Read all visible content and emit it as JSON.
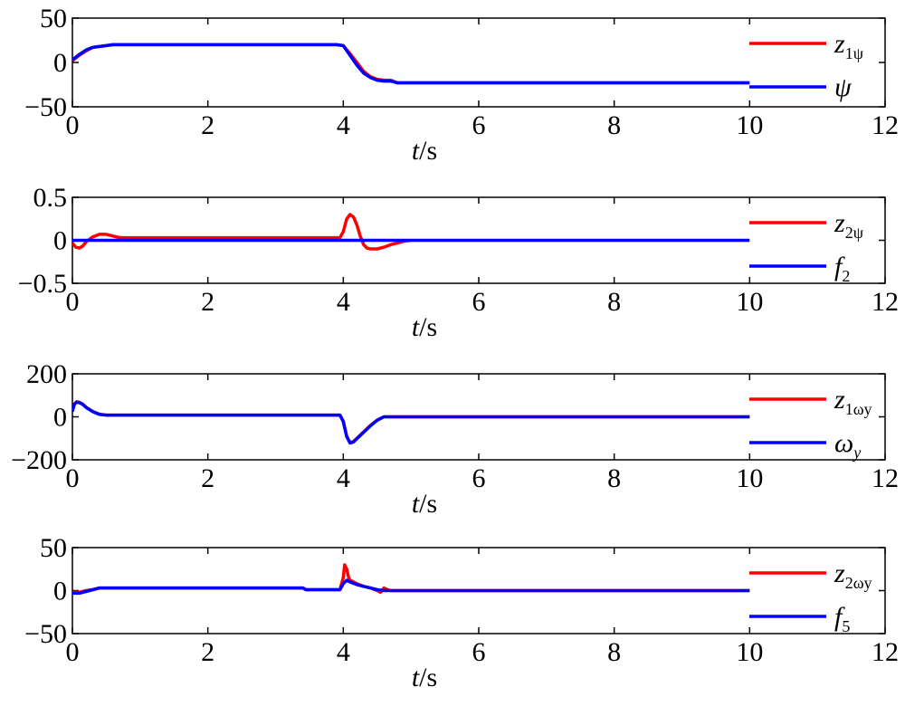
{
  "chart_data": [
    {
      "type": "line",
      "xlim": [
        0,
        12
      ],
      "ylim": [
        -50,
        50
      ],
      "xticks": [
        "0",
        "2",
        "4",
        "6",
        "8",
        "10",
        "12"
      ],
      "yticks": [
        "50",
        "0",
        "−50"
      ],
      "ytick_values": [
        50,
        0,
        -50
      ],
      "xlabel_var": "t",
      "xlabel_unit": "/s",
      "series": [
        {
          "name": "z",
          "sub": "1ψ",
          "color": "#ff0000",
          "x": [
            0,
            0.1,
            0.2,
            0.3,
            0.4,
            0.5,
            0.6,
            2,
            3.9,
            4.0,
            4.1,
            4.2,
            4.3,
            4.4,
            4.5,
            4.6,
            4.7,
            4.8,
            10
          ],
          "y": [
            2,
            8,
            13,
            17,
            18,
            19,
            20,
            20,
            20,
            19,
            10,
            0,
            -10,
            -16,
            -19,
            -20,
            -20,
            -23,
            -23
          ]
        },
        {
          "name": "ψ",
          "sub": "",
          "color": "#0000ff",
          "x": [
            0,
            0.1,
            0.2,
            0.3,
            0.4,
            0.5,
            0.6,
            2,
            3.9,
            4.0,
            4.1,
            4.2,
            4.3,
            4.4,
            4.5,
            4.6,
            4.7,
            4.8,
            10
          ],
          "y": [
            3,
            9,
            14,
            17,
            18,
            19,
            20,
            20,
            20,
            19,
            8,
            -3,
            -12,
            -17,
            -20,
            -21,
            -21,
            -23,
            -23
          ]
        }
      ]
    },
    {
      "type": "line",
      "xlim": [
        0,
        12
      ],
      "ylim": [
        -0.5,
        0.5
      ],
      "xticks": [
        "0",
        "2",
        "4",
        "6",
        "8",
        "10",
        "12"
      ],
      "yticks": [
        "0.5",
        "0",
        "−0.5"
      ],
      "ytick_values": [
        0.5,
        0,
        -0.5
      ],
      "xlabel_var": "t",
      "xlabel_unit": "/s",
      "series": [
        {
          "name": "z",
          "sub": "2ψ",
          "color": "#ff0000",
          "x": [
            0,
            0.05,
            0.1,
            0.15,
            0.2,
            0.3,
            0.4,
            0.5,
            0.6,
            0.7,
            1,
            3.95,
            4.0,
            4.05,
            4.1,
            4.15,
            4.2,
            4.25,
            4.3,
            4.35,
            4.4,
            4.5,
            4.6,
            4.7,
            4.8,
            4.9,
            5.0
          ],
          "y": [
            -0.03,
            -0.08,
            -0.09,
            -0.07,
            -0.02,
            0.04,
            0.07,
            0.07,
            0.05,
            0.03,
            0.03,
            0.03,
            0.1,
            0.25,
            0.3,
            0.27,
            0.18,
            0.05,
            -0.05,
            -0.09,
            -0.1,
            -0.1,
            -0.08,
            -0.05,
            -0.03,
            -0.01,
            0
          ]
        },
        {
          "name": "f",
          "sub": "2",
          "color": "#0000ff",
          "x": [
            0,
            10
          ],
          "y": [
            0,
            0
          ]
        }
      ]
    },
    {
      "type": "line",
      "xlim": [
        0,
        12
      ],
      "ylim": [
        -200,
        200
      ],
      "xticks": [
        "0",
        "2",
        "4",
        "6",
        "8",
        "10",
        "12"
      ],
      "yticks": [
        "200",
        "0",
        "−200"
      ],
      "ytick_values": [
        200,
        0,
        -200
      ],
      "xlabel_var": "t",
      "xlabel_unit": "/s",
      "series": [
        {
          "name": "z",
          "sub": "1ωy",
          "color": "#ff0000",
          "x": [
            0,
            0.03,
            0.06,
            0.1,
            0.15,
            0.2,
            0.3,
            0.4,
            0.5,
            2,
            3.95,
            4.0,
            4.05,
            4.1,
            4.15,
            4.2,
            4.3,
            4.4,
            4.5,
            4.6,
            10
          ],
          "y": [
            30,
            60,
            70,
            68,
            60,
            45,
            25,
            12,
            8,
            8,
            8,
            -20,
            -90,
            -120,
            -115,
            -100,
            -70,
            -40,
            -15,
            0,
            0
          ]
        },
        {
          "name": "ω",
          "sub": "y",
          "color": "#0000ff",
          "x": [
            0,
            0.03,
            0.06,
            0.1,
            0.15,
            0.2,
            0.3,
            0.4,
            0.5,
            2,
            3.95,
            4.0,
            4.05,
            4.1,
            4.15,
            4.2,
            4.3,
            4.4,
            4.5,
            4.6,
            10
          ],
          "y": [
            25,
            58,
            68,
            66,
            58,
            44,
            24,
            11,
            8,
            8,
            8,
            -22,
            -92,
            -122,
            -117,
            -102,
            -72,
            -42,
            -16,
            0,
            0
          ]
        }
      ]
    },
    {
      "type": "line",
      "xlim": [
        0,
        12
      ],
      "ylim": [
        -50,
        50
      ],
      "xticks": [
        "0",
        "2",
        "4",
        "6",
        "8",
        "10",
        "12"
      ],
      "yticks": [
        "50",
        "0",
        "−50"
      ],
      "ytick_values": [
        50,
        0,
        -50
      ],
      "xlabel_var": "t",
      "xlabel_unit": "/s",
      "series": [
        {
          "name": "z",
          "sub": "2ωy",
          "color": "#ff0000",
          "x": [
            0,
            0.1,
            0.2,
            0.3,
            0.4,
            0.5,
            2,
            3.4,
            3.45,
            3.95,
            4.0,
            4.02,
            4.05,
            4.08,
            4.1,
            4.15,
            4.2,
            4.3,
            4.4,
            4.5,
            4.55,
            4.6,
            4.65,
            4.7,
            10
          ],
          "y": [
            -2,
            -2,
            0,
            1,
            3,
            3,
            3,
            3,
            1,
            1,
            15,
            30,
            25,
            15,
            12,
            10,
            8,
            5,
            3,
            0,
            -2,
            3,
            1,
            0,
            0
          ]
        },
        {
          "name": "f",
          "sub": "5",
          "color": "#0000ff",
          "x": [
            0,
            0.1,
            0.2,
            0.3,
            0.4,
            0.5,
            2,
            3.4,
            3.45,
            3.95,
            4.0,
            4.05,
            4.1,
            4.2,
            4.3,
            4.4,
            4.5,
            4.6,
            4.7,
            10
          ],
          "y": [
            -3,
            -3,
            -1,
            1,
            3,
            3,
            3,
            3,
            1,
            1,
            8,
            12,
            10,
            7,
            5,
            3,
            1,
            0,
            0,
            0
          ]
        }
      ]
    }
  ]
}
